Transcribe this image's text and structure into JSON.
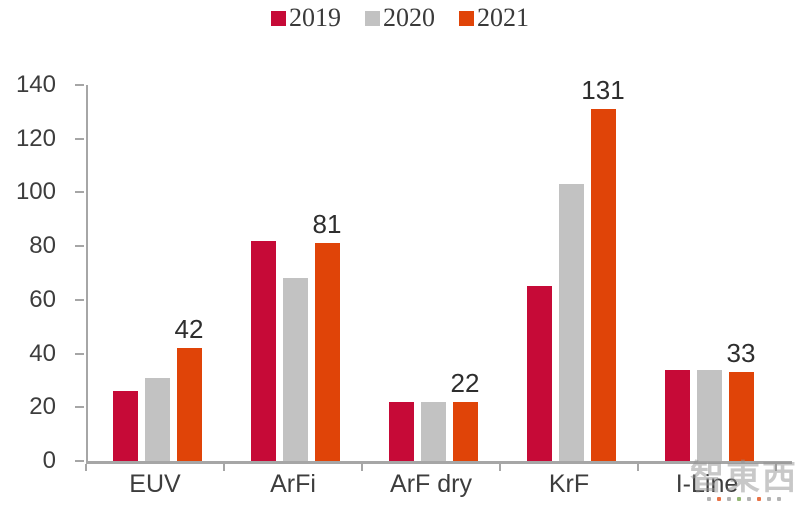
{
  "chart_data": {
    "type": "bar",
    "title": "",
    "xlabel": "",
    "ylabel": "",
    "categories": [
      "EUV",
      "ArFi",
      "ArF dry",
      "KrF",
      "I-Line"
    ],
    "series": [
      {
        "name": "2019",
        "color": "#C60A37",
        "values": [
          26,
          82,
          22,
          65,
          34
        ],
        "data_labels": null
      },
      {
        "name": "2020",
        "color": "#C2C2C2",
        "values": [
          31,
          68,
          22,
          103,
          34
        ],
        "data_labels": null
      },
      {
        "name": "2021",
        "color": "#E04408",
        "values": [
          42,
          81,
          22,
          131,
          33
        ],
        "data_labels": [
          42,
          81,
          22,
          131,
          33
        ]
      }
    ],
    "ylim": [
      0,
      140
    ],
    "yticks": [
      0,
      20,
      40,
      60,
      80,
      100,
      120,
      140
    ],
    "grid": false,
    "legend_position": "top",
    "axis_color": "#a6a6a6",
    "text_color": "#3d3d3d"
  },
  "watermark": {
    "text": "智東西",
    "dot_colors": [
      "#9a9a9a",
      "#E04408",
      "#9a9a9a",
      "#6f9e45",
      "#9a9a9a",
      "#E04408",
      "#9a9a9a",
      "#9a9a9a"
    ]
  }
}
